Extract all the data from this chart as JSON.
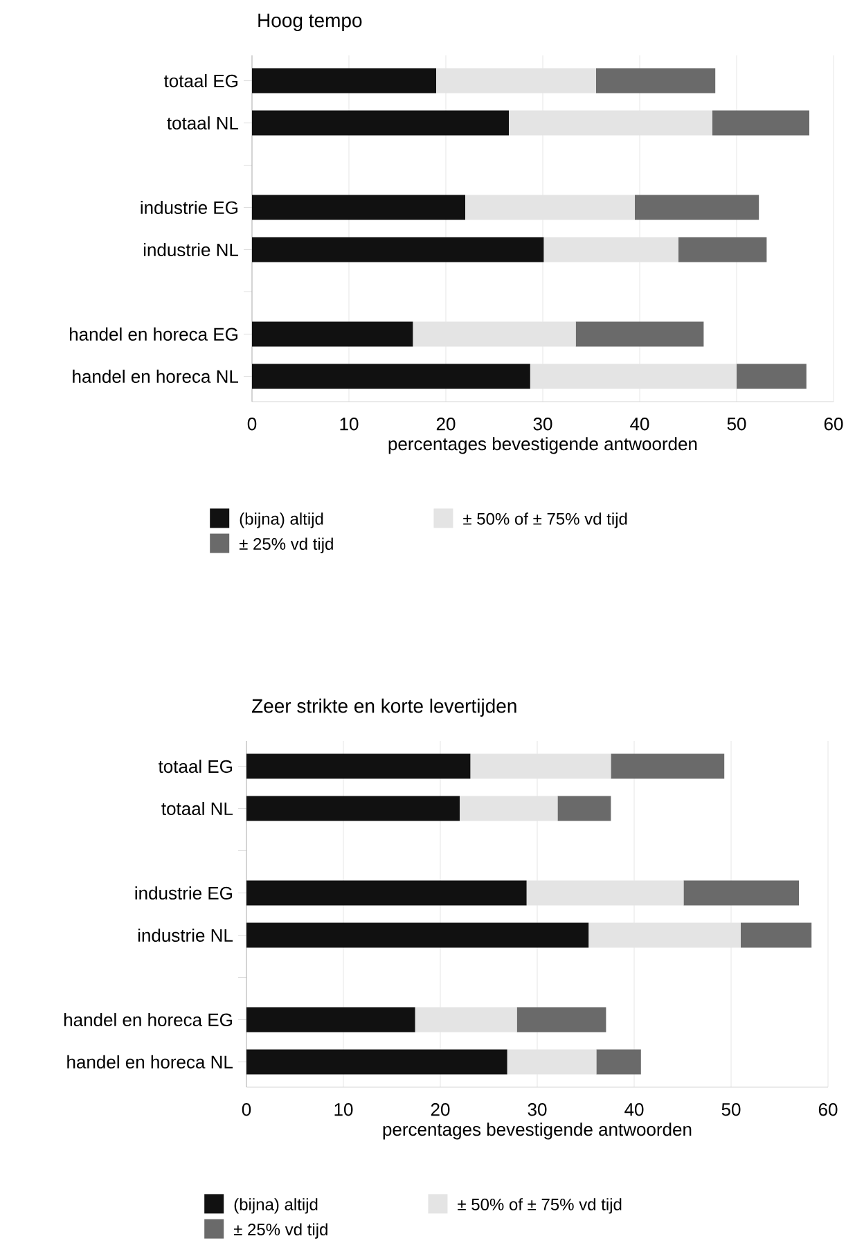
{
  "chart_data": [
    {
      "type": "bar",
      "orientation": "horizontal",
      "stacked": true,
      "title": "Hoog tempo",
      "xlabel": "percentages  bevestigende  antwoorden",
      "categories": [
        "totaal EG",
        "totaal NL",
        null,
        "industrie EG",
        "industrie NL",
        null,
        "handel en horeca EG",
        "handel en horeca NL"
      ],
      "series": [
        {
          "name": "(bijna) altijd",
          "color": "#111111",
          "values": [
            19,
            26.5,
            null,
            22,
            30.1,
            null,
            16.6,
            28.7
          ]
        },
        {
          "name": "± 50% of ± 75%  vd tijd",
          "color": "#e4e4e4",
          "values": [
            16.5,
            21,
            null,
            17.5,
            13.9,
            null,
            16.8,
            21.3
          ]
        },
        {
          "name": "± 25%  vd tijd",
          "color": "#6a6a6a",
          "values": [
            12.3,
            10,
            null,
            12.8,
            9.1,
            null,
            13.2,
            7.2
          ]
        }
      ],
      "xlim": [
        0,
        60
      ],
      "xticks": [
        0,
        10,
        20,
        30,
        40,
        50,
        60
      ],
      "grid": "x",
      "legend": "bottom"
    },
    {
      "type": "bar",
      "orientation": "horizontal",
      "stacked": true,
      "title": "Zeer strikte en korte levertijden",
      "xlabel": "percentages  bevestigende  antwoorden",
      "categories": [
        "totaal EG",
        "totaal NL",
        null,
        "industrie EG",
        "industrie NL",
        null,
        "handel en horeca EG",
        "handel en horeca NL"
      ],
      "series": [
        {
          "name": "(bijna) altijd",
          "color": "#111111",
          "values": [
            23.1,
            22,
            null,
            28.9,
            35.3,
            null,
            17.4,
            26.9
          ]
        },
        {
          "name": "± 50% of ± 75%  vd tijd",
          "color": "#e4e4e4",
          "values": [
            14.5,
            10.1,
            null,
            16.2,
            15.7,
            null,
            10.5,
            9.2
          ]
        },
        {
          "name": "± 25%  vd tijd",
          "color": "#6a6a6a",
          "values": [
            11.7,
            5.5,
            null,
            11.9,
            7.3,
            null,
            9.2,
            4.6
          ]
        }
      ],
      "xlim": [
        0,
        60
      ],
      "xticks": [
        0,
        10,
        20,
        30,
        40,
        50,
        60
      ],
      "grid": "x",
      "legend": "bottom"
    }
  ]
}
